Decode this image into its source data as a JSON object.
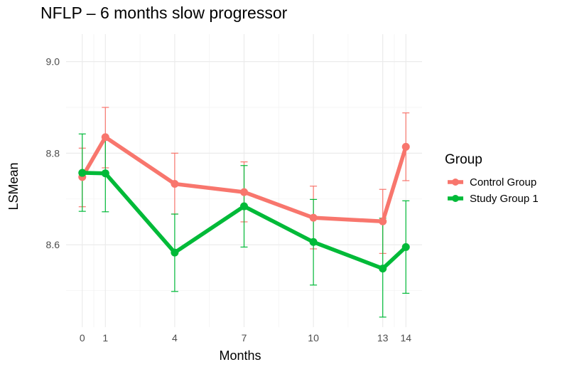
{
  "chart_data": {
    "type": "line",
    "title": "NFLP – 6 months slow progressor",
    "xlabel": "Months",
    "ylabel": "LSMean",
    "x": [
      0,
      1,
      4,
      7,
      10,
      13,
      14
    ],
    "xticks": [
      0,
      1,
      4,
      7,
      10,
      13,
      14
    ],
    "xlim": [
      -0.7,
      14.7
    ],
    "yticks": [
      8.6,
      8.8,
      9.0
    ],
    "ytick_labels": [
      "8.6",
      "8.8",
      "9.0"
    ],
    "ylim": [
      8.42,
      9.06
    ],
    "grid": true,
    "legend": {
      "title": "Group",
      "placement": "right"
    },
    "series": [
      {
        "name": "Control Group",
        "color": "#F8766D",
        "values": [
          8.748,
          8.835,
          8.733,
          8.715,
          8.659,
          8.651,
          8.814
        ],
        "lower": [
          8.683,
          8.768,
          8.667,
          8.65,
          8.591,
          8.581,
          8.74
        ],
        "upper": [
          8.811,
          8.9,
          8.8,
          8.781,
          8.728,
          8.721,
          8.888
        ]
      },
      {
        "name": "Study Group 1",
        "color": "#00BA38",
        "values": [
          8.757,
          8.756,
          8.583,
          8.684,
          8.606,
          8.548,
          8.595
        ],
        "lower": [
          8.673,
          8.672,
          8.498,
          8.595,
          8.512,
          8.442,
          8.494
        ],
        "upper": [
          8.842,
          8.837,
          8.667,
          8.773,
          8.699,
          8.658,
          8.696
        ]
      }
    ]
  }
}
